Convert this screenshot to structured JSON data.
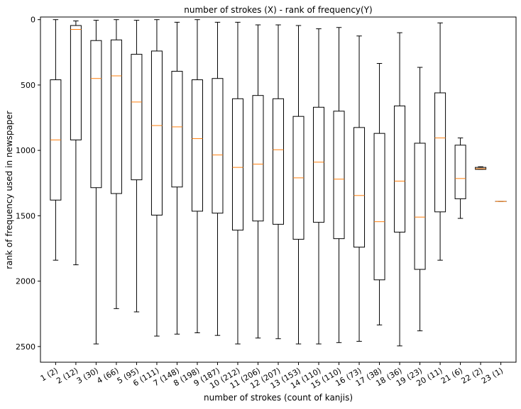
{
  "chart_data": {
    "type": "box",
    "title": "number of strokes (X) - rank of frequency(Y)",
    "xlabel": "number of strokes (count of kanjis)",
    "ylabel": "rank of frequency used in newspaper",
    "y_inverted": true,
    "ylim": [
      -20,
      2620
    ],
    "yticks": [
      0,
      500,
      1000,
      1500,
      2000,
      2500
    ],
    "categories": [
      "1 (2)",
      "2 (12)",
      "3 (30)",
      "4 (66)",
      "5 (95)",
      "6 (111)",
      "7 (148)",
      "8 (198)",
      "9 (187)",
      "10 (212)",
      "11 (206)",
      "12 (207)",
      "13 (153)",
      "14 (110)",
      "15 (110)",
      "16 (73)",
      "17 (38)",
      "18 (36)",
      "19 (23)",
      "20 (11)",
      "21 (6)",
      "22 (2)",
      "23 (1)"
    ],
    "boxes": [
      {
        "whislo": 0,
        "q1": 460,
        "med": 920,
        "q3": 1380,
        "whishi": 1840
      },
      {
        "whislo": 10,
        "q1": 45,
        "med": 75,
        "q3": 920,
        "whishi": 1875
      },
      {
        "whislo": 5,
        "q1": 160,
        "med": 450,
        "q3": 1285,
        "whishi": 2480
      },
      {
        "whislo": 0,
        "q1": 155,
        "med": 430,
        "q3": 1330,
        "whishi": 2210
      },
      {
        "whislo": 5,
        "q1": 265,
        "med": 630,
        "q3": 1225,
        "whishi": 2235
      },
      {
        "whislo": 0,
        "q1": 240,
        "med": 810,
        "q3": 1495,
        "whishi": 2420
      },
      {
        "whislo": 20,
        "q1": 395,
        "med": 820,
        "q3": 1280,
        "whishi": 2405
      },
      {
        "whislo": 0,
        "q1": 460,
        "med": 910,
        "q3": 1465,
        "whishi": 2395
      },
      {
        "whislo": 20,
        "q1": 450,
        "med": 1035,
        "q3": 1480,
        "whishi": 2415
      },
      {
        "whislo": 20,
        "q1": 605,
        "med": 1130,
        "q3": 1610,
        "whishi": 2480
      },
      {
        "whislo": 40,
        "q1": 580,
        "med": 1105,
        "q3": 1540,
        "whishi": 2435
      },
      {
        "whislo": 40,
        "q1": 605,
        "med": 995,
        "q3": 1565,
        "whishi": 2440
      },
      {
        "whislo": 45,
        "q1": 740,
        "med": 1210,
        "q3": 1680,
        "whishi": 2480
      },
      {
        "whislo": 70,
        "q1": 670,
        "med": 1090,
        "q3": 1550,
        "whishi": 2480
      },
      {
        "whislo": 60,
        "q1": 700,
        "med": 1220,
        "q3": 1675,
        "whishi": 2470
      },
      {
        "whislo": 125,
        "q1": 825,
        "med": 1345,
        "q3": 1740,
        "whishi": 2460
      },
      {
        "whislo": 335,
        "q1": 870,
        "med": 1545,
        "q3": 1990,
        "whishi": 2335
      },
      {
        "whislo": 100,
        "q1": 660,
        "med": 1235,
        "q3": 1625,
        "whishi": 2495
      },
      {
        "whislo": 365,
        "q1": 945,
        "med": 1510,
        "q3": 1910,
        "whishi": 2380
      },
      {
        "whislo": 25,
        "q1": 560,
        "med": 905,
        "q3": 1470,
        "whishi": 1840
      },
      {
        "whislo": 905,
        "q1": 960,
        "med": 1215,
        "q3": 1370,
        "whishi": 1520
      },
      {
        "whislo": 1125,
        "q1": 1130,
        "med": 1140,
        "q3": 1145,
        "whishi": 1145
      },
      {
        "whislo": 1390,
        "q1": 1390,
        "med": 1390,
        "q3": 1390,
        "whishi": 1390
      }
    ],
    "colors": {
      "box": "#000000",
      "median": "#ff7f0e",
      "background": "#ffffff"
    },
    "grid": false,
    "legend": "none"
  }
}
